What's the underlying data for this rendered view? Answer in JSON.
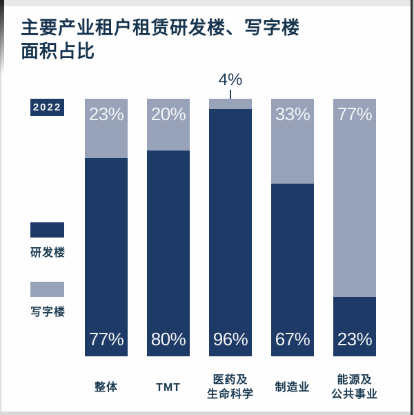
{
  "title": {
    "line1": "主要产业租户租赁研发楼、写字楼",
    "line2": "面积占比"
  },
  "year_badge": "2022",
  "legend": {
    "items": [
      {
        "label": "研发楼",
        "color": "#1e3a66"
      },
      {
        "label": "写字楼",
        "color": "#98a3ba"
      }
    ]
  },
  "chart_data": {
    "type": "bar",
    "stacked": true,
    "orientation": "vertical",
    "title": "主要产业租户租赁研发楼、写字楼面积占比",
    "year": "2022",
    "unit": "%",
    "ylim": [
      0,
      100
    ],
    "grid": false,
    "legend_position": "left",
    "categories": [
      "整体",
      "TMT",
      "医药及生命科学",
      "制造业",
      "能源及公共事业"
    ],
    "category_lines": [
      [
        "整体"
      ],
      [
        "TMT"
      ],
      [
        "医药及",
        "生命科学"
      ],
      [
        "制造业"
      ],
      [
        "能源及",
        "公共事业"
      ]
    ],
    "series": [
      {
        "name": "研发楼",
        "color": "#1e3a66",
        "stack_position": "bottom",
        "values": [
          77,
          80,
          96,
          67,
          23
        ],
        "labels": [
          "77%",
          "80%",
          "96%",
          "67%",
          "23%"
        ]
      },
      {
        "name": "写字楼",
        "color": "#98a3ba",
        "stack_position": "top",
        "values": [
          23,
          20,
          4,
          33,
          77
        ],
        "labels": [
          "23%",
          "20%",
          "4%",
          "33%",
          "77%"
        ]
      }
    ],
    "annotations": [
      {
        "category": "医药及生命科学",
        "series": "写字楼",
        "text": "4%",
        "type": "callout-above-bar"
      }
    ]
  },
  "colors": {
    "rnd_navy": "#1e3a66",
    "office_grayblue": "#98a3ba",
    "ink": "#17344e",
    "label_on_bar": "#f2f4f6"
  }
}
